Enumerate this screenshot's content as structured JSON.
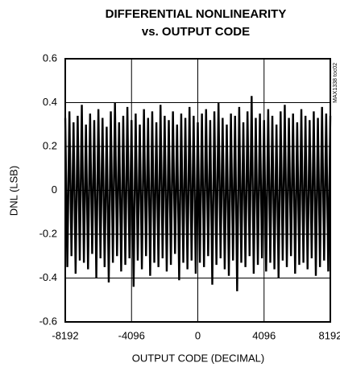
{
  "chart_data": {
    "type": "line",
    "title": [
      "DIFFERENTIAL NONLINEARITY",
      "vs. OUTPUT CODE"
    ],
    "xlabel": "OUTPUT CODE (DECIMAL)",
    "ylabel": "DNL (LSB)",
    "annotation": "MAX1338 toc02",
    "color": "#000000",
    "grid": true,
    "xlim": [
      -8192,
      8192
    ],
    "xticks": [
      -8192,
      -4096,
      0,
      4096,
      8192
    ],
    "ylim": [
      -0.6,
      0.6
    ],
    "yticks": [
      -0.6,
      -0.4,
      -0.2,
      0,
      0.2,
      0.4,
      0.6
    ],
    "x": [
      -8192,
      -8064,
      -7936,
      -7808,
      -7680,
      -7552,
      -7424,
      -7296,
      -7168,
      -7040,
      -6912,
      -6784,
      -6656,
      -6528,
      -6400,
      -6272,
      -6144,
      -6016,
      -5888,
      -5760,
      -5632,
      -5504,
      -5376,
      -5248,
      -5120,
      -4992,
      -4864,
      -4736,
      -4608,
      -4480,
      -4352,
      -4224,
      -4096,
      -3968,
      -3840,
      -3712,
      -3584,
      -3456,
      -3328,
      -3200,
      -3072,
      -2944,
      -2816,
      -2688,
      -2560,
      -2432,
      -2304,
      -2176,
      -2048,
      -1920,
      -1792,
      -1664,
      -1536,
      -1408,
      -1280,
      -1152,
      -1024,
      -896,
      -768,
      -640,
      -512,
      -384,
      -256,
      -128,
      0,
      128,
      256,
      384,
      512,
      640,
      768,
      896,
      1024,
      1152,
      1280,
      1408,
      1536,
      1664,
      1792,
      1920,
      2048,
      2176,
      2304,
      2432,
      2560,
      2688,
      2816,
      2944,
      3072,
      3200,
      3328,
      3456,
      3584,
      3712,
      3840,
      3968,
      4096,
      4224,
      4352,
      4480,
      4608,
      4736,
      4864,
      4992,
      5120,
      5248,
      5376,
      5504,
      5632,
      5760,
      5888,
      6016,
      6144,
      6272,
      6400,
      6528,
      6656,
      6784,
      6912,
      7040,
      7168,
      7296,
      7424,
      7552,
      7680,
      7808,
      7936,
      8064,
      8192
    ],
    "values": [
      0.33,
      -0.35,
      0.36,
      -0.3,
      0.31,
      -0.38,
      0.34,
      -0.32,
      0.39,
      -0.33,
      0.3,
      -0.36,
      0.35,
      -0.29,
      0.32,
      -0.4,
      0.37,
      -0.31,
      0.33,
      -0.35,
      0.29,
      -0.42,
      0.36,
      -0.33,
      0.4,
      -0.3,
      0.31,
      -0.37,
      0.34,
      -0.34,
      0.38,
      -0.31,
      0.32,
      -0.44,
      0.35,
      -0.32,
      0.3,
      -0.36,
      0.37,
      -0.3,
      0.33,
      -0.39,
      0.36,
      -0.33,
      0.31,
      -0.35,
      0.39,
      -0.31,
      0.34,
      -0.37,
      0.32,
      -0.34,
      0.36,
      -0.29,
      0.3,
      -0.41,
      0.35,
      -0.33,
      0.33,
      -0.36,
      0.38,
      -0.32,
      0.34,
      -0.38,
      0.31,
      -0.33,
      0.35,
      -0.35,
      0.37,
      -0.3,
      0.32,
      -0.43,
      0.36,
      -0.34,
      0.4,
      -0.31,
      0.33,
      -0.36,
      0.3,
      -0.39,
      0.35,
      -0.32,
      0.34,
      -0.46,
      0.38,
      -0.33,
      0.31,
      -0.35,
      0.36,
      -0.3,
      0.43,
      -0.38,
      0.33,
      -0.34,
      0.35,
      -0.31,
      0.32,
      -0.37,
      0.37,
      -0.33,
      0.34,
      -0.36,
      0.3,
      -0.4,
      0.36,
      -0.32,
      0.39,
      -0.35,
      0.33,
      -0.3,
      0.35,
      -0.38,
      0.31,
      -0.34,
      0.37,
      -0.33,
      0.34,
      -0.36,
      0.32,
      -0.31,
      0.36,
      -0.39,
      0.33,
      -0.35,
      0.38,
      -0.32,
      0.35,
      -0.37,
      0.34
    ]
  }
}
